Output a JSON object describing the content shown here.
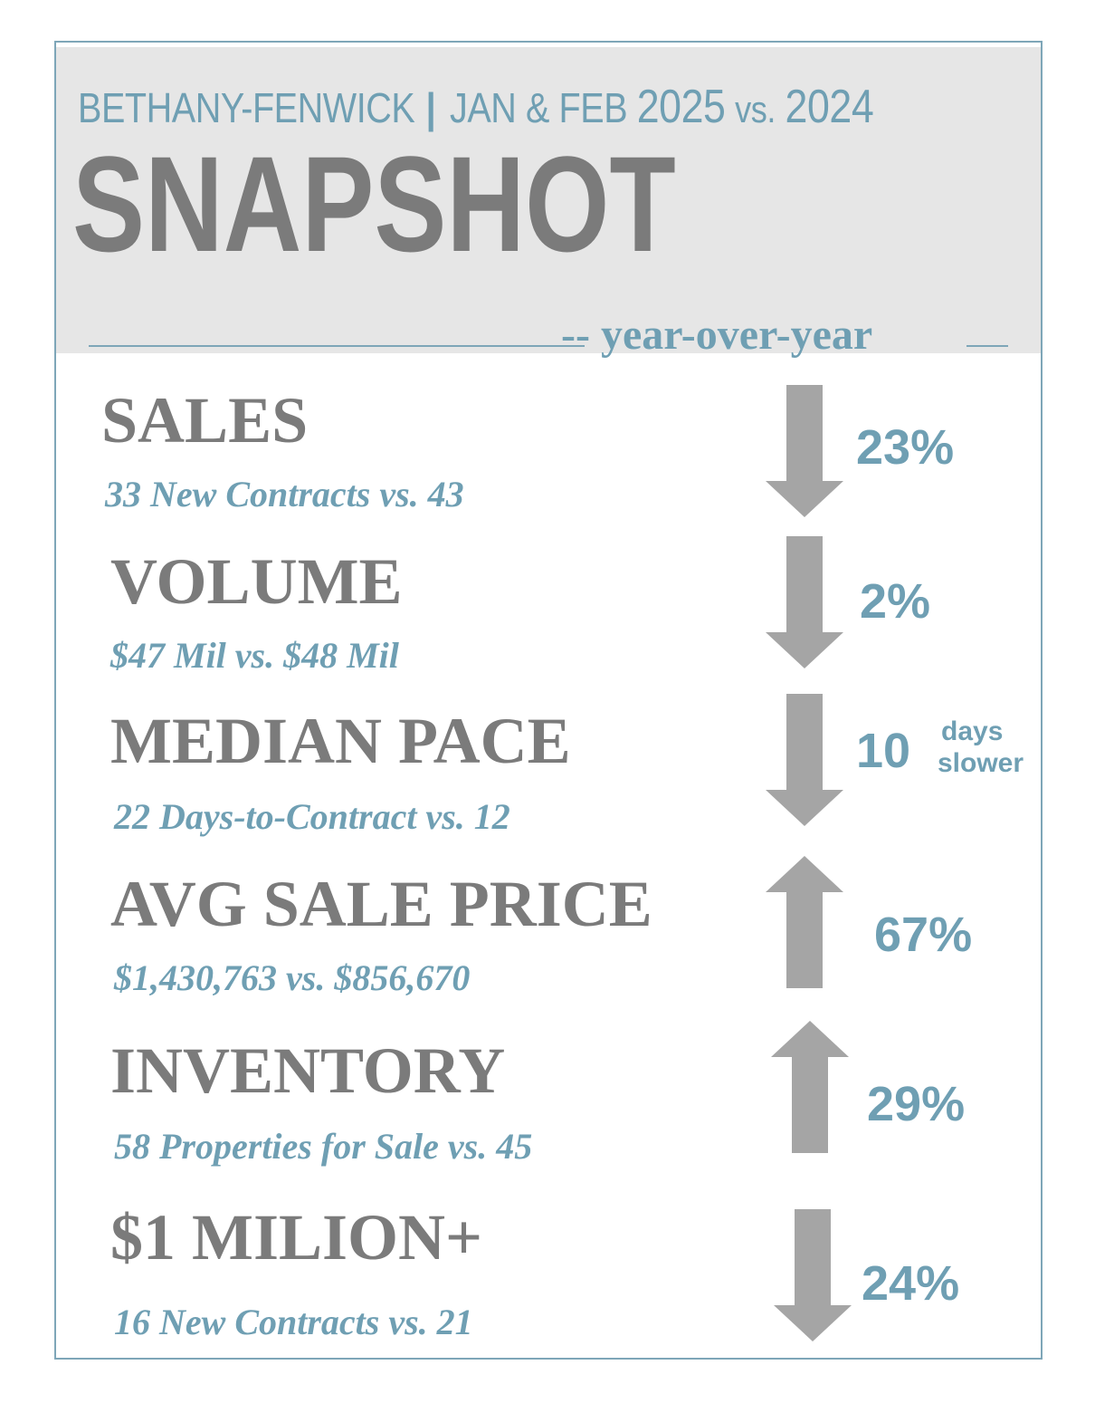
{
  "header": {
    "location": "BETHANY-FENWICK",
    "separator": "|",
    "period": "JAN & FEB",
    "year_current": "2025",
    "vs": "vs.",
    "year_prior": "2024",
    "title": "SNAPSHOT",
    "subtitle": "-- year-over-year"
  },
  "colors": {
    "accent": "#6f9fb3",
    "label_gray": "#7b7b7b",
    "arrow_gray": "#a5a5a5",
    "header_bg": "#e6e6e6",
    "border": "#7ea6b8"
  },
  "metrics": [
    {
      "label": "SALES",
      "detail": "33 New Contracts vs. 43",
      "direction": "down",
      "change": "23%",
      "icon": "down-arrow-icon"
    },
    {
      "label": "VOLUME",
      "detail": "$47 Mil vs. $48 Mil",
      "direction": "down",
      "change": "2%",
      "icon": "down-arrow-icon"
    },
    {
      "label": "MEDIAN PACE",
      "detail": "22 Days-to-Contract vs. 12",
      "direction": "down",
      "change": "10",
      "change_unit_1": "days",
      "change_unit_2": "slower",
      "icon": "down-arrow-icon"
    },
    {
      "label": "AVG SALE PRICE",
      "detail": "$1,430,763  vs. $856,670",
      "direction": "up",
      "change": "67%",
      "icon": "up-arrow-icon"
    },
    {
      "label": "INVENTORY",
      "detail": "58 Properties for Sale vs. 45",
      "direction": "up",
      "change": "29%",
      "icon": "up-arrow-icon"
    },
    {
      "label": "$1 MILION+",
      "detail": "16  New Contracts vs. 21",
      "direction": "down",
      "change": "24%",
      "icon": "down-arrow-icon"
    }
  ]
}
